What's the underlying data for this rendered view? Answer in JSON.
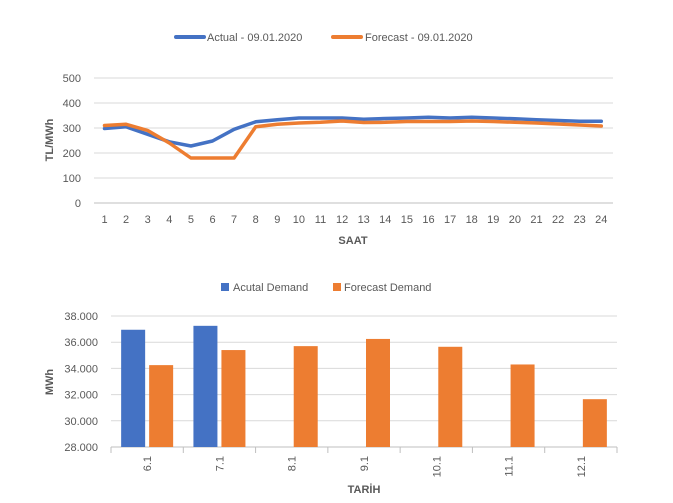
{
  "chart_data": [
    {
      "type": "line",
      "title": "",
      "xlabel": "SAAT",
      "ylabel": "TL/MWh",
      "ylim": [
        0,
        500
      ],
      "yticks": [
        0,
        100,
        200,
        300,
        400,
        500
      ],
      "grid": true,
      "legend_position": "top-center",
      "x": [
        1,
        2,
        3,
        4,
        5,
        6,
        7,
        8,
        9,
        10,
        11,
        12,
        13,
        14,
        15,
        16,
        17,
        18,
        19,
        20,
        21,
        22,
        23,
        24
      ],
      "series": [
        {
          "name": "Actual - 09.01.2020",
          "color": "#4472C4",
          "values": [
            298,
            305,
            275,
            245,
            228,
            248,
            295,
            325,
            333,
            340,
            340,
            340,
            335,
            338,
            340,
            343,
            340,
            343,
            340,
            337,
            333,
            330,
            327,
            327
          ]
        },
        {
          "name": "Forecast - 09.01.2020",
          "color": "#ED7D31",
          "values": [
            310,
            315,
            290,
            240,
            180,
            180,
            180,
            305,
            315,
            320,
            323,
            328,
            322,
            323,
            326,
            326,
            326,
            328,
            326,
            323,
            320,
            316,
            312,
            308
          ]
        }
      ]
    },
    {
      "type": "bar",
      "title": "",
      "xlabel": "TARİH",
      "ylabel": "MWh",
      "ylim": [
        28000,
        38000
      ],
      "ytick_labels": [
        "28.000",
        "30.000",
        "32.000",
        "34.000",
        "36.000",
        "38.000"
      ],
      "yticks": [
        28000,
        30000,
        32000,
        34000,
        36000,
        38000
      ],
      "grid": true,
      "legend_position": "top-center",
      "categories": [
        "6.1",
        "7.1",
        "8.1",
        "9.1",
        "10.1",
        "11.1",
        "12.1"
      ],
      "series": [
        {
          "name": "Acutal Demand",
          "color": "#4472C4",
          "values": [
            36950,
            37250,
            null,
            null,
            null,
            null,
            null
          ]
        },
        {
          "name": "Forecast Demand",
          "color": "#ED7D31",
          "values": [
            34250,
            35400,
            35700,
            36250,
            35650,
            34300,
            31650
          ]
        }
      ]
    }
  ]
}
